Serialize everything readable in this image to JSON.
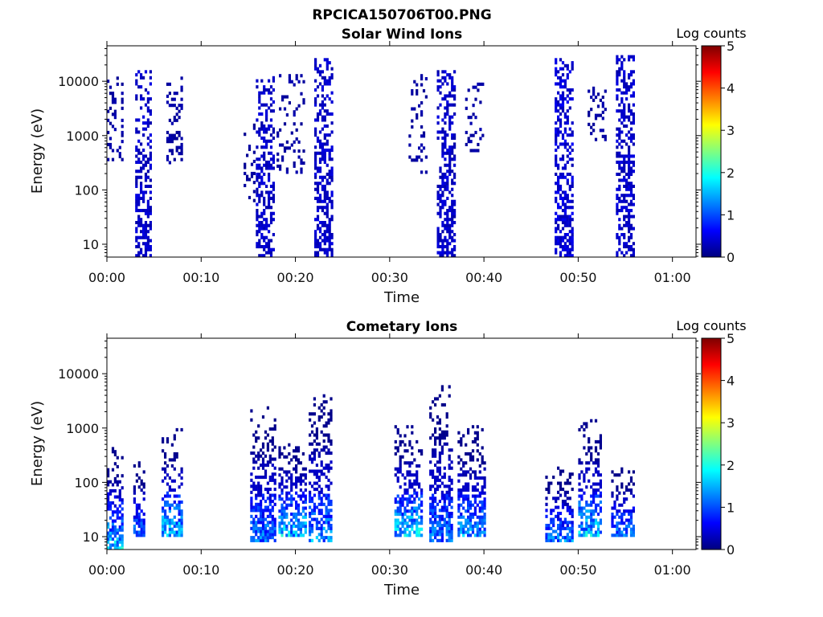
{
  "figure": {
    "title": "RPCICA150706T00.PNG"
  },
  "colormap": [
    "#00007f",
    "#0000ff",
    "#007fff",
    "#00ffff",
    "#7fff7f",
    "#ffff00",
    "#ff7f00",
    "#ff0000",
    "#7f0000"
  ],
  "chart_data": [
    {
      "type": "heatmap",
      "title": "Solar Wind Ions",
      "xlabel": "Time",
      "ylabel": "Energy (eV)",
      "x_ticks": [
        "00:00",
        "00:10",
        "00:20",
        "00:30",
        "00:40",
        "00:50",
        "01:00"
      ],
      "x_range_minutes": [
        0,
        62.5
      ],
      "y_scale": "log",
      "y_ticks": [
        "10",
        "100",
        "1000",
        "10000"
      ],
      "y_range": [
        5.8,
        45000
      ],
      "colorbar": {
        "title": "Log counts",
        "ticks": [
          "0",
          "1",
          "2",
          "3",
          "4",
          "5"
        ],
        "range": [
          0,
          5
        ]
      },
      "bursts": [
        {
          "t0": 0.0,
          "t1": 1.6,
          "emin": 300,
          "emax": 12000,
          "lmax": 0.25,
          "density": 0.25
        },
        {
          "t0": 3.0,
          "t1": 4.7,
          "emin": 5.8,
          "emax": 15000,
          "lmax": 0.5,
          "density": 0.55
        },
        {
          "t0": 6.3,
          "t1": 8.0,
          "emin": 300,
          "emax": 12000,
          "lmax": 0.25,
          "density": 0.35
        },
        {
          "t0": 14.5,
          "t1": 15.6,
          "emin": 60,
          "emax": 1500,
          "lmax": 0.2,
          "density": 0.15
        },
        {
          "t0": 15.8,
          "t1": 17.6,
          "emin": 5.8,
          "emax": 12000,
          "lmax": 0.5,
          "density": 0.55
        },
        {
          "t0": 18.0,
          "t1": 21.0,
          "emin": 200,
          "emax": 12000,
          "lmax": 0.25,
          "density": 0.2
        },
        {
          "t0": 22.0,
          "t1": 24.0,
          "emin": 5.8,
          "emax": 25000,
          "lmax": 0.5,
          "density": 0.6
        },
        {
          "t0": 32.0,
          "t1": 34.0,
          "emin": 200,
          "emax": 12000,
          "lmax": 0.25,
          "density": 0.2
        },
        {
          "t0": 35.0,
          "t1": 37.0,
          "emin": 5.8,
          "emax": 15000,
          "lmax": 0.5,
          "density": 0.6
        },
        {
          "t0": 38.0,
          "t1": 40.0,
          "emin": 500,
          "emax": 9000,
          "lmax": 0.25,
          "density": 0.25
        },
        {
          "t0": 47.5,
          "t1": 49.5,
          "emin": 5.8,
          "emax": 30000,
          "lmax": 0.6,
          "density": 0.6
        },
        {
          "t0": 51.0,
          "t1": 53.0,
          "emin": 800,
          "emax": 9000,
          "lmax": 0.25,
          "density": 0.25
        },
        {
          "t0": 54.0,
          "t1": 56.0,
          "emin": 5.8,
          "emax": 30000,
          "lmax": 0.5,
          "density": 0.6
        }
      ]
    },
    {
      "type": "heatmap",
      "title": "Cometary Ions",
      "xlabel": "Time",
      "ylabel": "Energy (eV)",
      "x_ticks": [
        "00:00",
        "00:10",
        "00:20",
        "00:30",
        "00:40",
        "00:50",
        "01:00"
      ],
      "x_range_minutes": [
        0,
        62.5
      ],
      "y_scale": "log",
      "y_ticks": [
        "10",
        "100",
        "1000",
        "10000"
      ],
      "y_range": [
        5.8,
        45000
      ],
      "colorbar": {
        "title": "Log counts",
        "ticks": [
          "0",
          "1",
          "2",
          "3",
          "4",
          "5"
        ],
        "range": [
          0,
          5
        ]
      },
      "bursts": [
        {
          "t0": 0.0,
          "t1": 1.6,
          "emin": 5.8,
          "emax": 500,
          "lmax": 2.2,
          "density": 0.7
        },
        {
          "t0": 2.8,
          "t1": 4.0,
          "emin": 10,
          "emax": 250,
          "lmax": 1.6,
          "density": 0.7
        },
        {
          "t0": 5.8,
          "t1": 8.0,
          "emin": 10,
          "emax": 900,
          "lmax": 2.2,
          "density": 0.7
        },
        {
          "t0": 15.2,
          "t1": 17.8,
          "emin": 8,
          "emax": 2500,
          "lmax": 1.6,
          "density": 0.7
        },
        {
          "t0": 18.2,
          "t1": 21.0,
          "emin": 10,
          "emax": 700,
          "lmax": 2.2,
          "density": 0.7
        },
        {
          "t0": 21.4,
          "t1": 23.8,
          "emin": 8,
          "emax": 4000,
          "lmax": 1.8,
          "density": 0.7
        },
        {
          "t0": 30.5,
          "t1": 33.5,
          "emin": 10,
          "emax": 1300,
          "lmax": 2.2,
          "density": 0.7
        },
        {
          "t0": 34.2,
          "t1": 36.5,
          "emin": 8,
          "emax": 5500,
          "lmax": 1.6,
          "density": 0.7
        },
        {
          "t0": 37.2,
          "t1": 40.0,
          "emin": 10,
          "emax": 1000,
          "lmax": 1.8,
          "density": 0.7
        },
        {
          "t0": 46.5,
          "t1": 49.5,
          "emin": 8,
          "emax": 200,
          "lmax": 1.6,
          "density": 0.7
        },
        {
          "t0": 50.0,
          "t1": 52.5,
          "emin": 10,
          "emax": 1300,
          "lmax": 2.2,
          "density": 0.7
        },
        {
          "t0": 53.5,
          "t1": 56.0,
          "emin": 10,
          "emax": 200,
          "lmax": 1.6,
          "density": 0.7
        }
      ]
    }
  ]
}
